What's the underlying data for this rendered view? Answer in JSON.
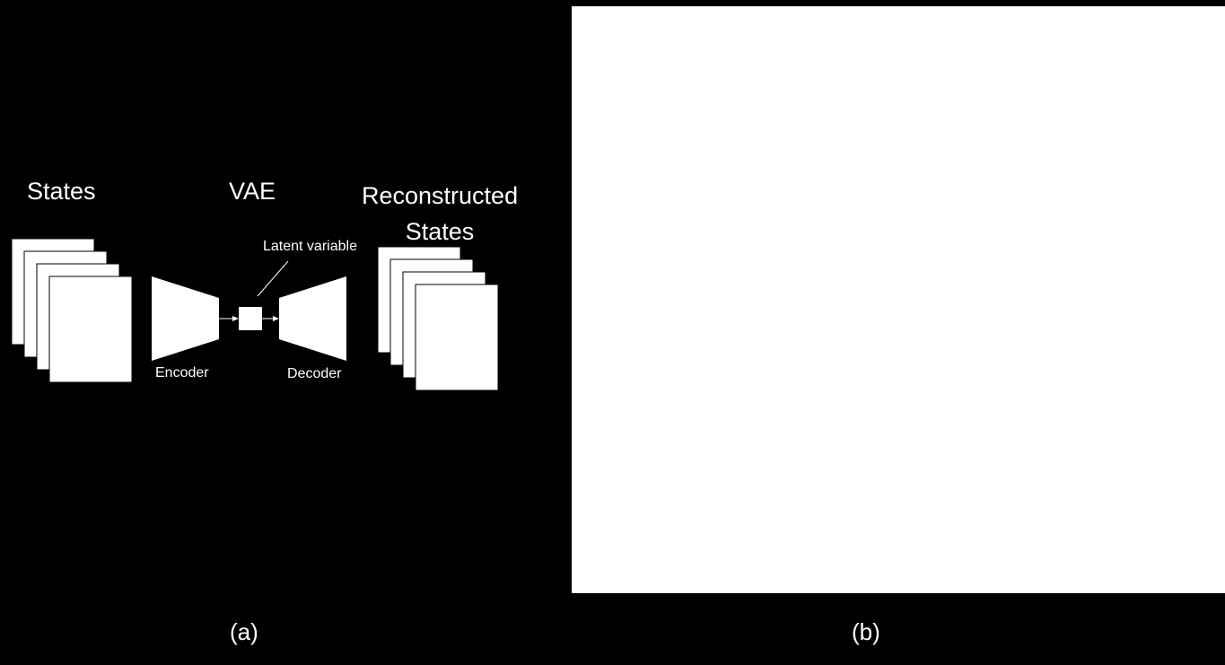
{
  "panel_a": {
    "states_title": "States",
    "vae_title": "VAE",
    "reconstructed_title_line1": "Reconstructed",
    "reconstructed_title_line2": "States",
    "latent_label": "Latent variable",
    "encoder_label": "Encoder",
    "decoder_label": "Decoder",
    "caption": "(a)"
  },
  "panel_b": {
    "caption": "(b)"
  },
  "colors": {
    "background": "#000000",
    "foreground": "#ffffff"
  }
}
